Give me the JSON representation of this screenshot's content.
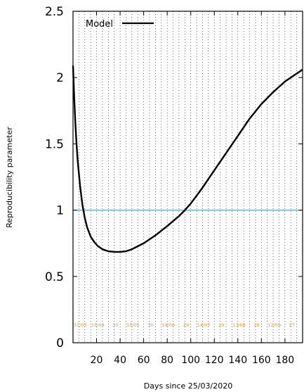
{
  "chart_data": {
    "type": "line",
    "xlabel": "Days since 25/03/2020",
    "ylabel": "Reproducibility parameter",
    "xlim": [
      0,
      195
    ],
    "ylim": [
      0,
      2.5
    ],
    "x_ticks": [
      20,
      40,
      60,
      80,
      100,
      120,
      140,
      160,
      180
    ],
    "y_ticks": [
      0,
      0.5,
      1,
      1.5,
      2,
      2.5
    ],
    "y_tick_labels": [
      "0",
      "0.5",
      "1",
      "1.5",
      "2",
      "2.5"
    ],
    "grid": "vertical dotted every 5 days",
    "legend": {
      "position": "top-left",
      "entries": [
        "Model"
      ]
    },
    "series": [
      {
        "name": "Model",
        "color": "#000000",
        "x": [
          0,
          1,
          2,
          3,
          4,
          6,
          8,
          10,
          12,
          15,
          18,
          21,
          25,
          30,
          35,
          40,
          45,
          50,
          60,
          70,
          80,
          90,
          95,
          100,
          110,
          120,
          130,
          140,
          150,
          160,
          170,
          180,
          195
        ],
        "y": [
          2.09,
          1.85,
          1.65,
          1.5,
          1.37,
          1.18,
          1.04,
          0.94,
          0.87,
          0.8,
          0.76,
          0.73,
          0.705,
          0.69,
          0.685,
          0.685,
          0.69,
          0.705,
          0.75,
          0.81,
          0.88,
          0.955,
          1.0,
          1.05,
          1.17,
          1.3,
          1.43,
          1.56,
          1.69,
          1.8,
          1.89,
          1.97,
          2.06
        ]
      }
    ],
    "reference_line": {
      "y": 1,
      "color": "#56a8d0"
    },
    "date_annotations": [
      {
        "x": 6,
        "label": "31/03"
      },
      {
        "x": 21,
        "label": "15/04"
      },
      {
        "x": 36,
        "label": "30"
      },
      {
        "x": 51,
        "label": "15/05"
      },
      {
        "x": 66,
        "label": "30"
      },
      {
        "x": 81,
        "label": "14/06"
      },
      {
        "x": 96,
        "label": "29"
      },
      {
        "x": 111,
        "label": "14/07"
      },
      {
        "x": 126,
        "label": "29"
      },
      {
        "x": 141,
        "label": "13/08"
      },
      {
        "x": 156,
        "label": "28"
      },
      {
        "x": 171,
        "label": "12/09"
      },
      {
        "x": 186,
        "label": "27"
      }
    ]
  }
}
